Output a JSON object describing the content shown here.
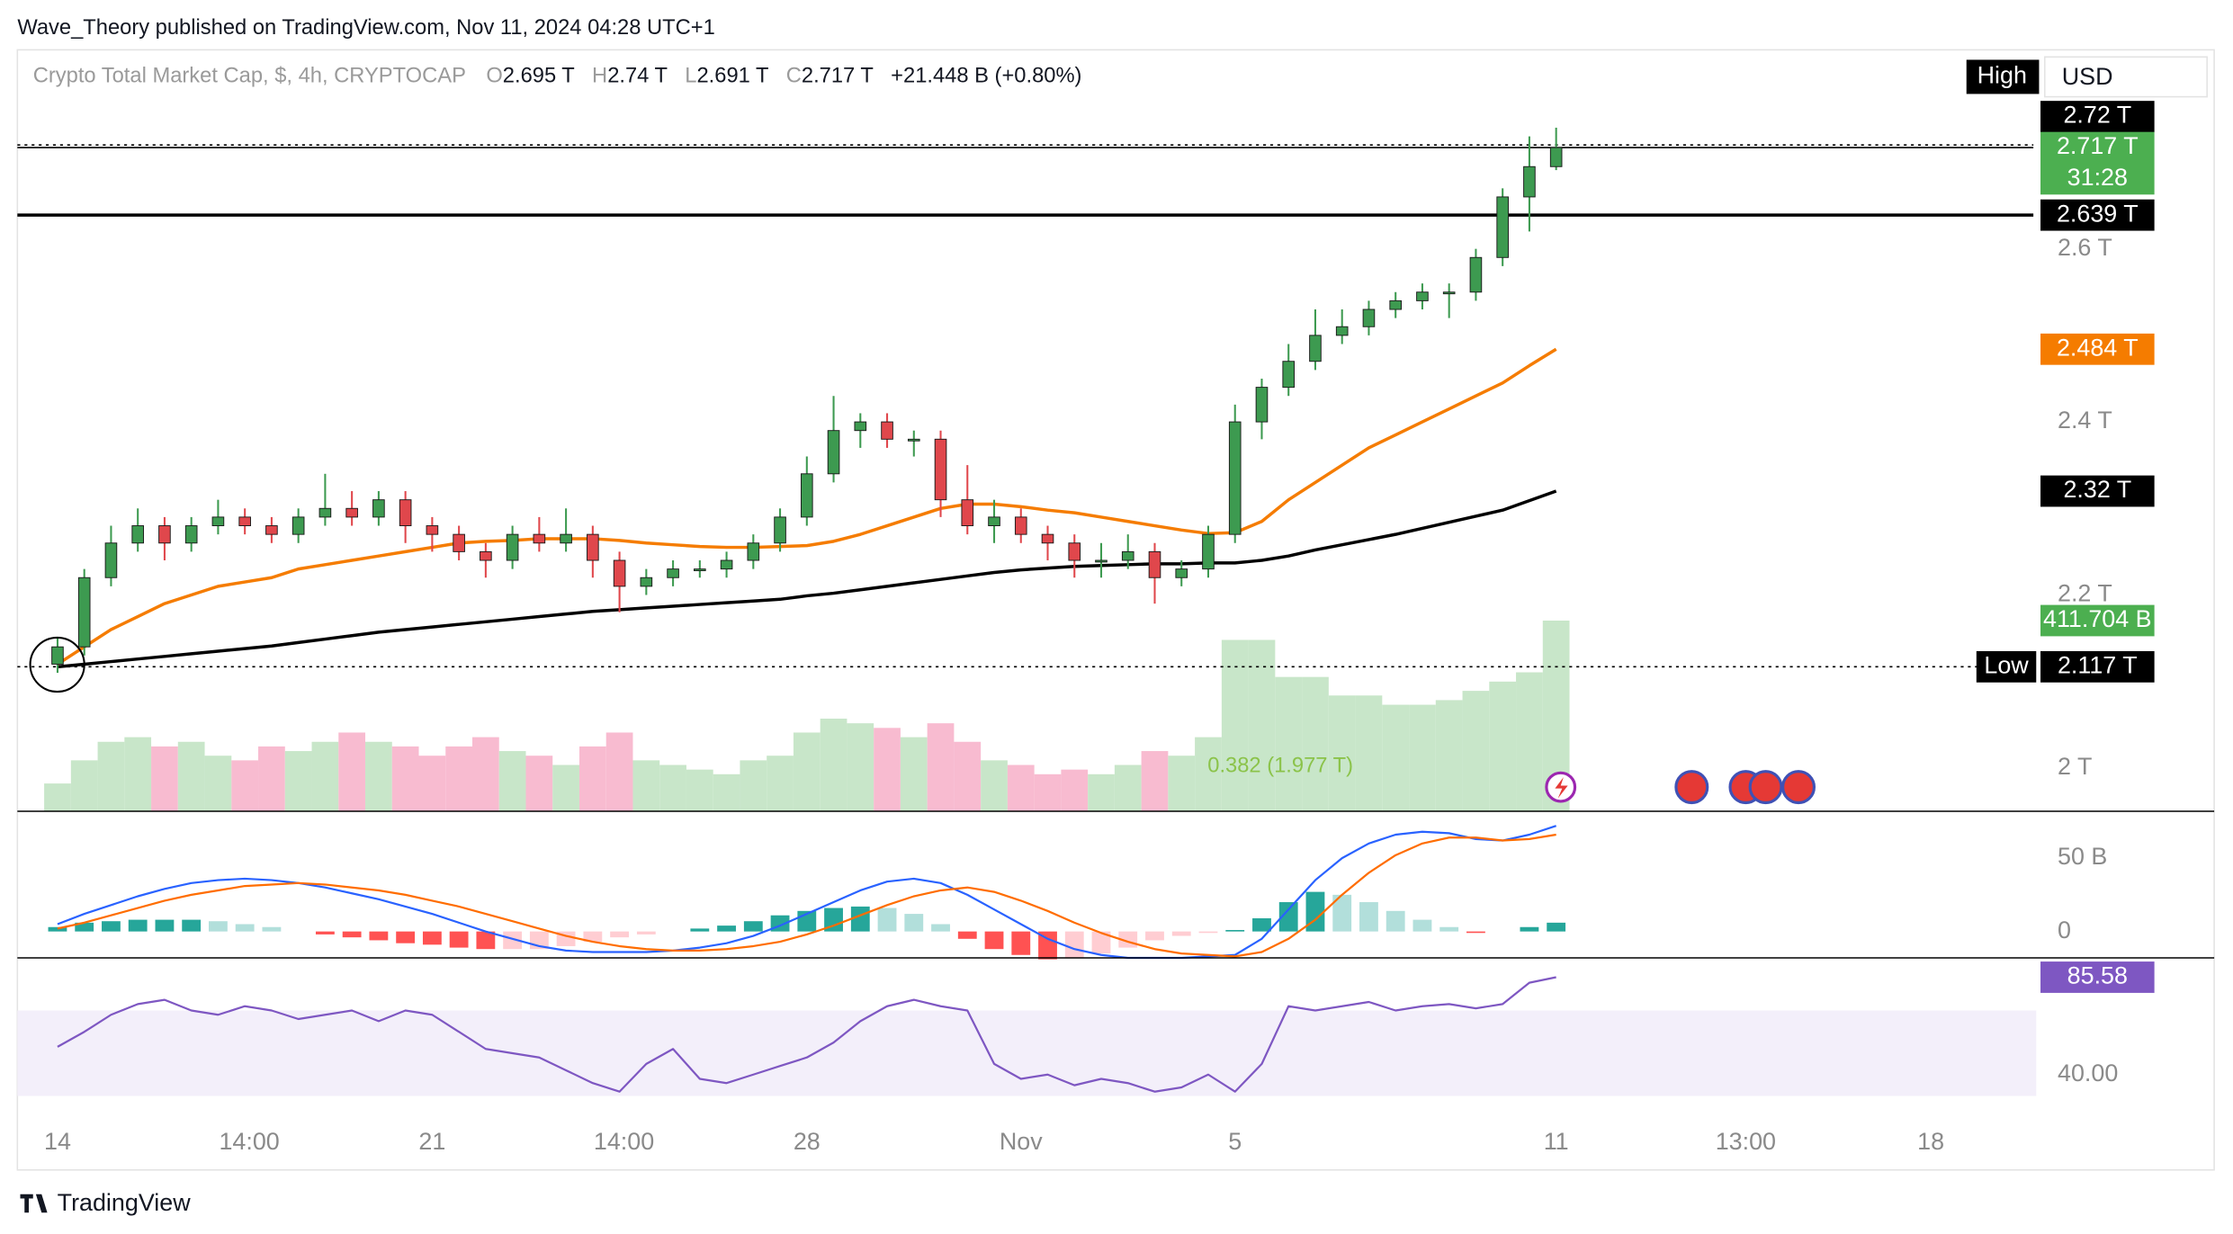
{
  "header": {
    "publisher": "Wave_Theory published on TradingView.com, Nov 11, 2024 04:28 UTC+1",
    "brand": "TradingView",
    "high_tag": "High",
    "currency": "USD"
  },
  "chart_data": [
    {
      "type": "candlestick",
      "title": "Crypto Total Market Cap, $, 4h, CRYPTOCAP",
      "ohlc_legend": [
        {
          "key": "O",
          "label": "2.695 T"
        },
        {
          "key": "H",
          "label": "2.74 T"
        },
        {
          "key": "L",
          "label": "2.691 T"
        },
        {
          "key": "C",
          "label": "2.717 T"
        }
      ],
      "change": "+21.448 B (+0.80%)",
      "up_color": "#3d9a50",
      "down_color": "#e0474c",
      "x": [
        "2024-10-14 00:00",
        "2024-10-14 12:00",
        "2024-10-15 00:00",
        "2024-10-15 12:00",
        "2024-10-16 00:00",
        "2024-10-16 12:00",
        "2024-10-17 00:00",
        "2024-10-17 12:00",
        "2024-10-18 00:00",
        "2024-10-18 12:00",
        "2024-10-19 00:00",
        "2024-10-19 12:00",
        "2024-10-20 00:00",
        "2024-10-20 12:00",
        "2024-10-21 00:00",
        "2024-10-21 12:00",
        "2024-10-22 00:00",
        "2024-10-22 12:00",
        "2024-10-23 00:00",
        "2024-10-23 12:00",
        "2024-10-24 00:00",
        "2024-10-24 12:00",
        "2024-10-25 00:00",
        "2024-10-25 12:00",
        "2024-10-26 00:00",
        "2024-10-26 12:00",
        "2024-10-27 00:00",
        "2024-10-27 12:00",
        "2024-10-28 00:00",
        "2024-10-28 12:00",
        "2024-10-29 00:00",
        "2024-10-29 12:00",
        "2024-10-30 00:00",
        "2024-10-30 12:00",
        "2024-10-31 00:00",
        "2024-10-31 12:00",
        "2024-11-01 00:00",
        "2024-11-01 12:00",
        "2024-11-02 00:00",
        "2024-11-02 12:00",
        "2024-11-03 00:00",
        "2024-11-03 12:00",
        "2024-11-04 00:00",
        "2024-11-04 12:00",
        "2024-11-05 00:00",
        "2024-11-05 12:00",
        "2024-11-06 00:00",
        "2024-11-06 12:00",
        "2024-11-07 00:00",
        "2024-11-07 12:00",
        "2024-11-08 00:00",
        "2024-11-08 12:00",
        "2024-11-09 00:00",
        "2024-11-09 12:00",
        "2024-11-10 00:00",
        "2024-11-10 12:00",
        "2024-11-11 00:00"
      ],
      "open": [
        2.12,
        2.14,
        2.22,
        2.26,
        2.28,
        2.26,
        2.28,
        2.29,
        2.28,
        2.27,
        2.29,
        2.3,
        2.29,
        2.31,
        2.28,
        2.27,
        2.25,
        2.24,
        2.27,
        2.26,
        2.27,
        2.24,
        2.21,
        2.22,
        2.23,
        2.23,
        2.24,
        2.26,
        2.29,
        2.34,
        2.39,
        2.4,
        2.38,
        2.38,
        2.31,
        2.28,
        2.29,
        2.27,
        2.26,
        2.24,
        2.24,
        2.25,
        2.22,
        2.23,
        2.27,
        2.4,
        2.44,
        2.47,
        2.5,
        2.51,
        2.53,
        2.54,
        2.55,
        2.55,
        2.59,
        2.66,
        2.695
      ],
      "high": [
        2.15,
        2.23,
        2.28,
        2.3,
        2.29,
        2.29,
        2.31,
        2.3,
        2.29,
        2.3,
        2.34,
        2.32,
        2.32,
        2.32,
        2.29,
        2.28,
        2.26,
        2.28,
        2.29,
        2.3,
        2.28,
        2.25,
        2.23,
        2.24,
        2.24,
        2.25,
        2.27,
        2.3,
        2.36,
        2.43,
        2.41,
        2.41,
        2.39,
        2.39,
        2.35,
        2.31,
        2.3,
        2.28,
        2.27,
        2.26,
        2.27,
        2.26,
        2.24,
        2.28,
        2.42,
        2.45,
        2.49,
        2.53,
        2.53,
        2.54,
        2.55,
        2.56,
        2.56,
        2.6,
        2.67,
        2.73,
        2.74
      ],
      "low": [
        2.11,
        2.13,
        2.21,
        2.25,
        2.24,
        2.25,
        2.27,
        2.27,
        2.26,
        2.26,
        2.28,
        2.28,
        2.28,
        2.26,
        2.25,
        2.24,
        2.22,
        2.23,
        2.25,
        2.25,
        2.22,
        2.18,
        2.2,
        2.21,
        2.22,
        2.22,
        2.23,
        2.25,
        2.28,
        2.33,
        2.37,
        2.37,
        2.36,
        2.29,
        2.27,
        2.26,
        2.26,
        2.24,
        2.22,
        2.22,
        2.23,
        2.19,
        2.21,
        2.22,
        2.26,
        2.38,
        2.43,
        2.46,
        2.49,
        2.5,
        2.52,
        2.53,
        2.52,
        2.54,
        2.58,
        2.62,
        2.691
      ],
      "close": [
        2.14,
        2.22,
        2.26,
        2.28,
        2.26,
        2.28,
        2.29,
        2.28,
        2.27,
        2.29,
        2.3,
        2.29,
        2.31,
        2.28,
        2.27,
        2.25,
        2.24,
        2.27,
        2.26,
        2.27,
        2.24,
        2.21,
        2.22,
        2.23,
        2.23,
        2.24,
        2.26,
        2.29,
        2.34,
        2.39,
        2.4,
        2.38,
        2.38,
        2.31,
        2.28,
        2.29,
        2.27,
        2.26,
        2.24,
        2.24,
        2.25,
        2.22,
        2.23,
        2.27,
        2.4,
        2.44,
        2.47,
        2.5,
        2.51,
        2.53,
        2.54,
        2.55,
        2.55,
        2.59,
        2.66,
        2.695,
        2.717
      ],
      "series": [
        {
          "color": "#f57c00",
          "values": [
            2.12,
            2.14,
            2.16,
            2.175,
            2.19,
            2.2,
            2.21,
            2.215,
            2.22,
            2.23,
            2.235,
            2.24,
            2.245,
            2.25,
            2.255,
            2.26,
            2.262,
            2.263,
            2.265,
            2.265,
            2.265,
            2.263,
            2.26,
            2.258,
            2.256,
            2.255,
            2.255,
            2.256,
            2.257,
            2.262,
            2.27,
            2.28,
            2.29,
            2.3,
            2.305,
            2.305,
            2.302,
            2.298,
            2.295,
            2.29,
            2.285,
            2.28,
            2.275,
            2.271,
            2.272,
            2.285,
            2.31,
            2.33,
            2.35,
            2.37,
            2.385,
            2.4,
            2.415,
            2.43,
            2.445,
            2.465,
            2.484
          ]
        },
        {
          "color": "#000000",
          "values": [
            2.117,
            2.12,
            2.123,
            2.126,
            2.129,
            2.132,
            2.135,
            2.138,
            2.141,
            2.145,
            2.149,
            2.153,
            2.157,
            2.16,
            2.163,
            2.166,
            2.169,
            2.172,
            2.175,
            2.178,
            2.181,
            2.183,
            2.185,
            2.187,
            2.189,
            2.191,
            2.193,
            2.195,
            2.199,
            2.202,
            2.206,
            2.21,
            2.214,
            2.218,
            2.222,
            2.226,
            2.229,
            2.231,
            2.233,
            2.234,
            2.235,
            2.236,
            2.236,
            2.237,
            2.237,
            2.24,
            2.245,
            2.252,
            2.258,
            2.264,
            2.27,
            2.277,
            2.284,
            2.291,
            2.298,
            2.309,
            2.32
          ]
        }
      ],
      "volume": {
        "up_color": "#c8e6c9",
        "down_color": "#f8bbd0",
        "ylim": [
          0,
          1644
        ],
        "values": [
          60,
          110,
          150,
          160,
          140,
          150,
          120,
          110,
          140,
          130,
          150,
          170,
          150,
          140,
          120,
          140,
          160,
          130,
          120,
          100,
          140,
          170,
          110,
          100,
          90,
          80,
          110,
          120,
          170,
          200,
          190,
          180,
          160,
          190,
          150,
          110,
          100,
          80,
          90,
          80,
          100,
          130,
          120,
          160,
          370,
          370,
          290,
          290,
          250,
          250,
          230,
          230,
          240,
          260,
          280,
          300,
          411.704
        ]
      },
      "levels": [
        {
          "value": 2.72,
          "style": "dotted"
        },
        {
          "value": 2.717,
          "style": "solid"
        },
        {
          "value": 2.639,
          "style": "bold"
        },
        {
          "value": 2.117,
          "style": "dotted"
        }
      ],
      "price_labels": [
        {
          "value": 2.72,
          "label": "2.72 T",
          "color": "#000000"
        },
        {
          "value": 2.717,
          "label": "2.717 T",
          "sublabel": "31:28",
          "color": "#4caf50"
        },
        {
          "value": 2.639,
          "label": "2.639 T",
          "color": "#000000"
        },
        {
          "value": 2.484,
          "label": "2.484 T",
          "color": "#f57c00"
        },
        {
          "value": 2.32,
          "label": "2.32 T",
          "color": "#000000"
        },
        {
          "value": 411.704,
          "label": "411.704 B",
          "color": "#4caf50",
          "axis": "volume"
        },
        {
          "value": 2.117,
          "label": "2.117 T",
          "tag": "Low",
          "color": "#000000"
        }
      ],
      "fib": {
        "value": 1.977,
        "label": "0.382 (1.977 T)"
      },
      "ylim": [
        1.95,
        2.83
      ],
      "yticks": [
        {
          "value": 2,
          "label": "2 T"
        },
        {
          "value": 2.2,
          "label": "2.2 T"
        },
        {
          "value": 2.4,
          "label": "2.4 T"
        },
        {
          "value": 2.6,
          "label": "2.6 T"
        }
      ],
      "xlim": [
        "2024-10-13 06:00",
        "2024-11-19 22:00"
      ],
      "xticks": [
        {
          "value": "2024-10-14",
          "label": "14"
        },
        {
          "value": "2024-10-17 14:00",
          "label": "14:00"
        },
        {
          "value": "2024-10-21",
          "label": "21"
        },
        {
          "value": "2024-10-24 14:00",
          "label": "14:00"
        },
        {
          "value": "2024-10-28",
          "label": "28"
        },
        {
          "value": "2024-11-01",
          "label": "Nov"
        },
        {
          "value": "2024-11-05",
          "label": "5"
        },
        {
          "value": "2024-11-11",
          "label": "11"
        },
        {
          "value": "2024-11-14 13:00",
          "label": "13:00"
        },
        {
          "value": "2024-11-18",
          "label": "18"
        }
      ],
      "grid": false
    },
    {
      "type": "macd",
      "series": [
        {
          "color": "#2962ff",
          "values": [
            5,
            12,
            18,
            24,
            29,
            33,
            35,
            36,
            35,
            33,
            30,
            26,
            22,
            17,
            12,
            6,
            0,
            -5,
            -10,
            -13,
            -14,
            -14,
            -14,
            -13,
            -11,
            -8,
            -3,
            4,
            12,
            20,
            28,
            34,
            36,
            33,
            25,
            15,
            5,
            -5,
            -12,
            -16,
            -18,
            -18,
            -18,
            -17,
            -16,
            -5,
            15,
            35,
            50,
            60,
            66,
            68,
            67,
            63,
            62,
            66,
            72
          ]
        },
        {
          "color": "#ff6d00",
          "values": [
            2,
            6,
            11,
            16,
            21,
            25,
            28,
            31,
            32,
            33,
            32,
            30,
            28,
            25,
            21,
            17,
            12,
            7,
            2,
            -3,
            -7,
            -10,
            -12,
            -13,
            -13,
            -12,
            -10,
            -7,
            -2,
            4,
            11,
            18,
            24,
            28,
            30,
            27,
            21,
            14,
            6,
            -1,
            -7,
            -12,
            -15,
            -16,
            -17,
            -14,
            -5,
            8,
            25,
            40,
            52,
            60,
            64,
            64,
            62,
            63,
            66
          ]
        }
      ],
      "histogram": [
        3,
        6,
        7,
        8,
        8,
        8,
        7,
        5,
        3,
        0,
        -2,
        -4,
        -6,
        -8,
        -9,
        -11,
        -12,
        -12,
        -12,
        -10,
        -7,
        -4,
        -2,
        0,
        2,
        4,
        7,
        11,
        14,
        16,
        17,
        16,
        12,
        5,
        -5,
        -12,
        -16,
        -19,
        -18,
        -15,
        -11,
        -6,
        -3,
        -1,
        1,
        9,
        20,
        27,
        25,
        20,
        14,
        8,
        3,
        -1,
        0,
        3,
        6
      ],
      "histogram_colors": [
        "#26a69a",
        "#b2dfdb",
        "#ffcdd2",
        "#ff5252"
      ],
      "ylim": [
        -18,
        80
      ],
      "yticks": [
        0,
        {
          "value": 50,
          "label": "50 B"
        }
      ]
    },
    {
      "type": "line",
      "series": [
        {
          "color": "#7e57c2",
          "values": [
            53,
            60,
            68,
            73,
            75,
            70,
            68,
            72,
            70,
            66,
            68,
            70,
            65,
            70,
            68,
            60,
            52,
            50,
            48,
            42,
            36,
            32,
            45,
            52,
            38,
            36,
            40,
            44,
            48,
            55,
            65,
            72,
            75,
            72,
            70,
            45,
            38,
            40,
            35,
            38,
            36,
            32,
            34,
            40,
            32,
            45,
            72,
            70,
            72,
            74,
            70,
            72,
            73,
            71,
            73,
            83,
            85.58
          ]
        }
      ],
      "price_labels": [
        {
          "value": 85.58,
          "label": "85.58",
          "color": "#7e57c2"
        }
      ],
      "band": [
        30,
        70
      ],
      "band_color": "#f3effa",
      "ylim": [
        20,
        93.3
      ],
      "yticks": [
        {
          "value": 40,
          "label": "40.00"
        }
      ]
    }
  ]
}
